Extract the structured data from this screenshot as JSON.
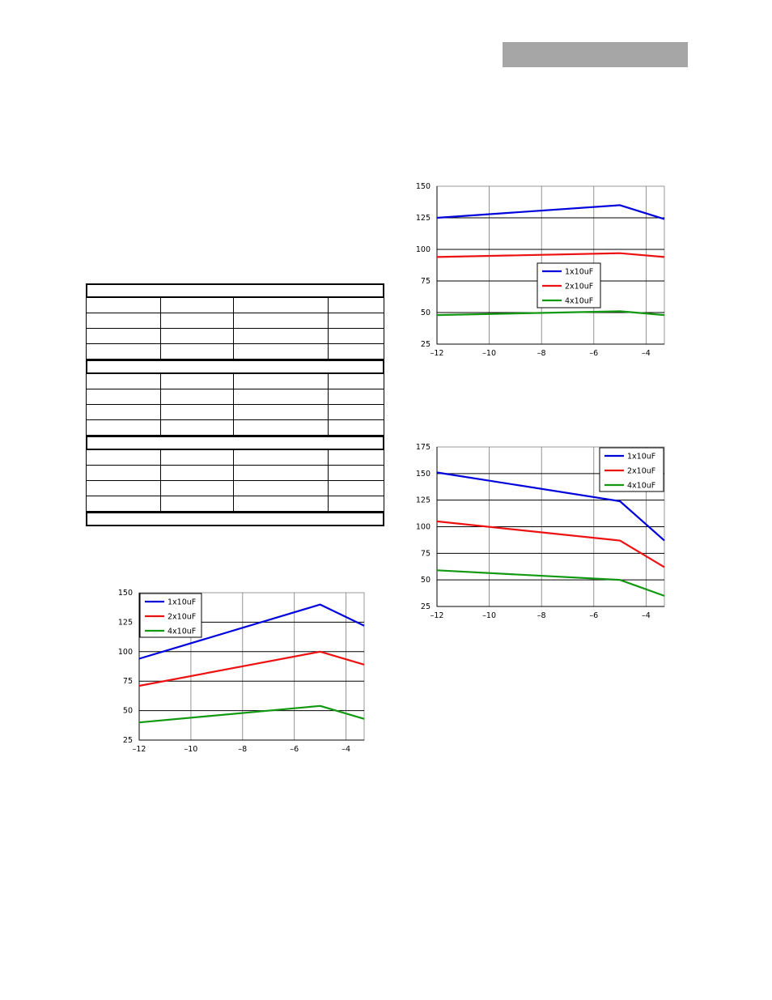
{
  "header": {
    "bar_color": "#a6a6a6"
  },
  "table": {
    "sections": [
      {
        "rows": 4
      },
      {
        "rows": 4
      },
      {
        "rows": 4
      },
      {
        "rows": 0
      }
    ]
  },
  "colors": {
    "blue": "#0000dd",
    "red": "#ee1111",
    "green": "#119911"
  },
  "chart_data": [
    {
      "id": "chart-top-right",
      "type": "line",
      "xlim": [
        -12,
        -3.3
      ],
      "ylim": [
        25,
        150
      ],
      "xticks": [
        -12,
        -10,
        -8,
        -6,
        -4
      ],
      "yticks": [
        25,
        50,
        75,
        100,
        125,
        150
      ],
      "xtick_labels": [
        "-12",
        "-10",
        "-8",
        "-6",
        "-4"
      ],
      "ytick_labels": [
        "25",
        "50",
        "75",
        "100",
        "125",
        "150"
      ],
      "grid": true,
      "legend_placement": "center-right",
      "series": [
        {
          "name": "1x10uF",
          "color": "#0000dd",
          "x": [
            -12,
            -5,
            -3.3
          ],
          "y": [
            125,
            135,
            124
          ]
        },
        {
          "name": "2x10uF",
          "color": "#ee1111",
          "x": [
            -12,
            -5,
            -3.3
          ],
          "y": [
            94,
            97,
            94
          ]
        },
        {
          "name": "4x10uF",
          "color": "#119911",
          "x": [
            -12,
            -5,
            -3.3
          ],
          "y": [
            48,
            51,
            48
          ]
        }
      ]
    },
    {
      "id": "chart-bottom-left",
      "type": "line",
      "xlim": [
        -12,
        -3.3
      ],
      "ylim": [
        25,
        150
      ],
      "xticks": [
        -12,
        -10,
        -8,
        -6,
        -4
      ],
      "yticks": [
        25,
        50,
        75,
        100,
        125,
        150
      ],
      "xtick_labels": [
        "-12",
        "-10",
        "-8",
        "-6",
        "-4"
      ],
      "ytick_labels": [
        "25",
        "50",
        "75",
        "100",
        "125",
        "150"
      ],
      "grid": true,
      "legend_placement": "top-left",
      "series": [
        {
          "name": "1x10uF",
          "color": "#0000dd",
          "x": [
            -12,
            -5,
            -3.3
          ],
          "y": [
            94,
            140,
            122
          ]
        },
        {
          "name": "2x10uF",
          "color": "#ee1111",
          "x": [
            -12,
            -5,
            -3.3
          ],
          "y": [
            71,
            100,
            89
          ]
        },
        {
          "name": "4x10uF",
          "color": "#119911",
          "x": [
            -12,
            -5,
            -3.3
          ],
          "y": [
            40,
            54,
            43
          ]
        }
      ]
    },
    {
      "id": "chart-mid-right",
      "type": "line",
      "xlim": [
        -12,
        -3.3
      ],
      "ylim": [
        25,
        175
      ],
      "xticks": [
        -12,
        -10,
        -8,
        -6,
        -4
      ],
      "yticks": [
        25,
        50,
        75,
        100,
        125,
        150,
        175
      ],
      "xtick_labels": [
        "-12",
        "-10",
        "-8",
        "-6",
        "-4"
      ],
      "ytick_labels": [
        "25",
        "50",
        "75",
        "100",
        "125",
        "150",
        "175"
      ],
      "grid": true,
      "legend_placement": "top-right",
      "series": [
        {
          "name": "1x10uF",
          "color": "#0000dd",
          "x": [
            -12,
            -5,
            -3.3
          ],
          "y": [
            151,
            124,
            87
          ]
        },
        {
          "name": "2x10uF",
          "color": "#ee1111",
          "x": [
            -12,
            -5,
            -3.3
          ],
          "y": [
            105,
            87,
            62
          ]
        },
        {
          "name": "4x10uF",
          "color": "#119911",
          "x": [
            -12,
            -5,
            -3.3
          ],
          "y": [
            59,
            50,
            35
          ]
        }
      ]
    }
  ]
}
